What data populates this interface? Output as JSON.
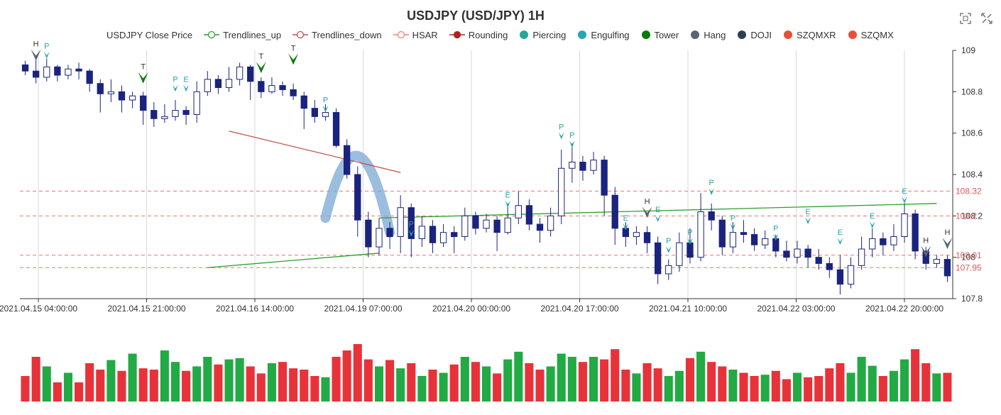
{
  "title": "USDJPY (USD/JPY) 1H",
  "legend": [
    {
      "name": "USDJPY Close Price",
      "shape": "none",
      "color": "#333333"
    },
    {
      "name": "Trendlines_up",
      "shape": "line-circle",
      "color": "#2ca02c"
    },
    {
      "name": "Trendlines_down",
      "shape": "line-circle",
      "color": "#c0504d"
    },
    {
      "name": "HSAR",
      "shape": "line-circle",
      "color": "#f08080"
    },
    {
      "name": "Rounding",
      "shape": "line-dot",
      "color": "#b22222"
    },
    {
      "name": "Piercing",
      "shape": "dot",
      "color": "#26a69a"
    },
    {
      "name": "Engulfing",
      "shape": "dot",
      "color": "#26a6b4"
    },
    {
      "name": "Tower",
      "shape": "dot",
      "color": "#0b7a0b"
    },
    {
      "name": "Hang",
      "shape": "dot",
      "color": "#5a6570"
    },
    {
      "name": "DOJI",
      "shape": "dot",
      "color": "#2f3e55"
    },
    {
      "name": "SZQMXR",
      "shape": "dot",
      "color": "#e8503a"
    },
    {
      "name": "SZQMX",
      "shape": "dot",
      "color": "#e8503a"
    }
  ],
  "toolbox": {
    "icons": [
      "zoom-icon",
      "restore-icon"
    ]
  },
  "chart_data": {
    "type": "candlestick",
    "y_axis": {
      "min": 107.8,
      "max": 109.0,
      "ticks": [
        "109",
        "108.8",
        "108.6",
        "108.4",
        "108.2",
        "108",
        "107.8"
      ]
    },
    "x_axis": {
      "labels": [
        "2021.04.15 04:00:00",
        "2021.04.15 21:00:00",
        "2021.04.16 14:00:00",
        "2021.04.19 07:00:00",
        "2021.04.20 00:00:00",
        "2021.04.20 17:00:00",
        "2021.04.21 10:00:00",
        "2021.04.22 03:00:00",
        "2021.04.22 20:00:00"
      ]
    },
    "hsar_levels": [
      {
        "value": 108.32,
        "label": "108.32"
      },
      {
        "value": 108.2,
        "label": "108.2"
      },
      {
        "value": 108.01,
        "label": "108.01"
      },
      {
        "value": 107.95,
        "label": "107.95"
      }
    ],
    "trendlines_down": [
      [
        [
          19,
          108.61
        ],
        [
          35,
          108.41
        ]
      ]
    ],
    "trendlines_up": [
      [
        [
          17,
          107.95
        ],
        [
          33,
          108.02
        ]
      ],
      [
        [
          33,
          108.19
        ],
        [
          85,
          108.26
        ]
      ]
    ],
    "rounding": {
      "start": [
        28,
        108.19
      ],
      "peak": [
        31,
        108.49
      ],
      "end": [
        34,
        108.12
      ]
    },
    "patterns": [
      {
        "i": 1,
        "label": "H",
        "kind": "Hang",
        "dir": "down",
        "price": 108.95
      },
      {
        "i": 2,
        "label": "P",
        "kind": "Piercing",
        "dir": "down",
        "price": 108.96
      },
      {
        "i": 11,
        "label": "T",
        "kind": "Tower",
        "dir": "down",
        "price": 108.84
      },
      {
        "i": 14,
        "label": "P",
        "kind": "Piercing",
        "dir": "down",
        "price": 108.8
      },
      {
        "i": 15,
        "label": "E",
        "kind": "Engulfing",
        "dir": "down",
        "price": 108.8
      },
      {
        "i": 22,
        "label": "T",
        "kind": "Tower",
        "dir": "down",
        "price": 108.89
      },
      {
        "i": 25,
        "label": "T",
        "kind": "Tower",
        "dir": "down",
        "price": 108.93
      },
      {
        "i": 28,
        "label": "P",
        "kind": "Piercing",
        "dir": "down",
        "price": 108.7
      },
      {
        "i": 36,
        "label": "P",
        "kind": "Piercing",
        "dir": "down",
        "price": 108.1
      },
      {
        "i": 45,
        "label": "E",
        "kind": "Engulfing",
        "dir": "down",
        "price": 108.24
      },
      {
        "i": 50,
        "label": "P",
        "kind": "Piercing",
        "dir": "down",
        "price": 108.57
      },
      {
        "i": 51,
        "label": "P",
        "kind": "Piercing",
        "dir": "down",
        "price": 108.53
      },
      {
        "i": 56,
        "label": "E",
        "kind": "Engulfing",
        "dir": "down",
        "price": 108.13
      },
      {
        "i": 58,
        "label": "H",
        "kind": "Hang",
        "dir": "down",
        "price": 108.19
      },
      {
        "i": 59,
        "label": "E",
        "kind": "Engulfing",
        "dir": "down",
        "price": 108.17
      },
      {
        "i": 60,
        "label": "P",
        "kind": "Piercing",
        "dir": "down",
        "price": 108.02
      },
      {
        "i": 62,
        "label": "P",
        "kind": "Piercing",
        "dir": "down",
        "price": 108.06
      },
      {
        "i": 64,
        "label": "P",
        "kind": "Piercing",
        "dir": "down",
        "price": 108.3
      },
      {
        "i": 66,
        "label": "P",
        "kind": "Piercing",
        "dir": "down",
        "price": 108.13
      },
      {
        "i": 70,
        "label": "P",
        "kind": "Piercing",
        "dir": "down",
        "price": 108.08
      },
      {
        "i": 73,
        "label": "E",
        "kind": "Engulfing",
        "dir": "down",
        "price": 108.16
      },
      {
        "i": 76,
        "label": "E",
        "kind": "Engulfing",
        "dir": "down",
        "price": 108.06
      },
      {
        "i": 79,
        "label": "E",
        "kind": "Engulfing",
        "dir": "down",
        "price": 108.14
      },
      {
        "i": 82,
        "label": "E",
        "kind": "Engulfing",
        "dir": "down",
        "price": 108.26
      },
      {
        "i": 84,
        "label": "H",
        "kind": "Hang",
        "dir": "down",
        "price": 108.0
      },
      {
        "i": 86,
        "label": "H",
        "kind": "Hang",
        "dir": "down",
        "price": 108.04
      }
    ],
    "candles": [
      [
        108.93,
        108.9,
        108.95,
        108.88
      ],
      [
        108.9,
        108.87,
        108.96,
        108.84
      ],
      [
        108.87,
        108.92,
        108.96,
        108.85
      ],
      [
        108.92,
        108.88,
        108.93,
        108.85
      ],
      [
        108.88,
        108.91,
        108.93,
        108.86
      ],
      [
        108.91,
        108.9,
        108.94,
        108.86
      ],
      [
        108.9,
        108.84,
        108.91,
        108.8
      ],
      [
        108.84,
        108.79,
        108.86,
        108.7
      ],
      [
        108.79,
        108.8,
        108.86,
        108.75
      ],
      [
        108.8,
        108.76,
        108.83,
        108.7
      ],
      [
        108.76,
        108.78,
        108.8,
        108.72
      ],
      [
        108.78,
        108.71,
        108.8,
        108.64
      ],
      [
        108.71,
        108.67,
        108.75,
        108.63
      ],
      [
        108.67,
        108.68,
        108.74,
        108.65
      ],
      [
        108.68,
        108.71,
        108.76,
        108.66
      ],
      [
        108.71,
        108.69,
        108.73,
        108.64
      ],
      [
        108.69,
        108.8,
        108.85,
        108.65
      ],
      [
        108.8,
        108.86,
        108.9,
        108.78
      ],
      [
        108.86,
        108.82,
        108.88,
        108.79
      ],
      [
        108.82,
        108.86,
        108.92,
        108.8
      ],
      [
        108.86,
        108.92,
        108.94,
        108.83
      ],
      [
        108.92,
        108.85,
        108.93,
        108.76
      ],
      [
        108.85,
        108.8,
        108.87,
        108.77
      ],
      [
        108.8,
        108.83,
        108.87,
        108.79
      ],
      [
        108.83,
        108.81,
        108.85,
        108.78
      ],
      [
        108.81,
        108.78,
        108.84,
        108.76
      ],
      [
        108.78,
        108.72,
        108.8,
        108.62
      ],
      [
        108.72,
        108.68,
        108.76,
        108.65
      ],
      [
        108.68,
        108.7,
        108.74,
        108.66
      ],
      [
        108.7,
        108.54,
        108.72,
        108.53
      ],
      [
        108.54,
        108.4,
        108.57,
        108.38
      ],
      [
        108.4,
        108.18,
        108.44,
        108.1
      ],
      [
        108.18,
        108.05,
        108.22,
        108.0
      ],
      [
        108.05,
        108.14,
        108.19,
        108.01
      ],
      [
        108.14,
        108.1,
        108.17,
        108.04
      ],
      [
        108.1,
        108.24,
        108.3,
        108.02
      ],
      [
        108.24,
        108.09,
        108.26,
        108.0
      ],
      [
        108.09,
        108.15,
        108.2,
        108.05
      ],
      [
        108.15,
        108.07,
        108.18,
        108.02
      ],
      [
        108.07,
        108.12,
        108.16,
        108.05
      ],
      [
        108.12,
        108.1,
        108.15,
        108.02
      ],
      [
        108.1,
        108.2,
        108.24,
        108.08
      ],
      [
        108.2,
        108.14,
        108.22,
        108.11
      ],
      [
        108.14,
        108.18,
        108.21,
        108.12
      ],
      [
        108.18,
        108.12,
        108.2,
        108.03
      ],
      [
        108.12,
        108.19,
        108.26,
        108.11
      ],
      [
        108.19,
        108.25,
        108.32,
        108.16
      ],
      [
        108.25,
        108.16,
        108.28,
        108.13
      ],
      [
        108.16,
        108.13,
        108.19,
        108.07
      ],
      [
        108.13,
        108.2,
        108.24,
        108.1
      ],
      [
        108.2,
        108.43,
        108.52,
        108.16
      ],
      [
        108.43,
        108.46,
        108.55,
        108.36
      ],
      [
        108.46,
        108.42,
        108.49,
        108.37
      ],
      [
        108.42,
        108.47,
        108.51,
        108.4
      ],
      [
        108.47,
        108.3,
        108.49,
        108.2
      ],
      [
        108.3,
        108.14,
        108.34,
        108.06
      ],
      [
        108.14,
        108.1,
        108.17,
        108.05
      ],
      [
        108.1,
        108.12,
        108.15,
        108.06
      ],
      [
        108.12,
        108.07,
        108.15,
        108.02
      ],
      [
        108.07,
        107.92,
        108.1,
        107.87
      ],
      [
        107.92,
        107.96,
        107.99,
        107.89
      ],
      [
        107.96,
        108.07,
        108.12,
        107.93
      ],
      [
        108.07,
        108.0,
        108.14,
        107.97
      ],
      [
        108.0,
        108.22,
        108.31,
        107.98
      ],
      [
        108.22,
        108.18,
        108.26,
        108.13
      ],
      [
        108.18,
        108.05,
        108.2,
        108.01
      ],
      [
        108.05,
        108.12,
        108.17,
        108.02
      ],
      [
        108.12,
        108.11,
        108.18,
        108.07
      ],
      [
        108.11,
        108.06,
        108.14,
        108.03
      ],
      [
        108.06,
        108.09,
        108.13,
        108.04
      ],
      [
        108.09,
        108.03,
        108.11,
        108.0
      ],
      [
        108.03,
        108.0,
        108.08,
        107.98
      ],
      [
        108.0,
        108.04,
        108.08,
        107.97
      ],
      [
        108.04,
        108.0,
        108.06,
        107.95
      ],
      [
        108.0,
        107.97,
        108.04,
        107.94
      ],
      [
        107.97,
        107.94,
        108.0,
        107.9
      ],
      [
        107.94,
        107.87,
        108.01,
        107.82
      ],
      [
        107.87,
        107.96,
        108.0,
        107.85
      ],
      [
        107.96,
        108.04,
        108.1,
        107.94
      ],
      [
        108.04,
        108.09,
        108.14,
        108.0
      ],
      [
        108.09,
        108.06,
        108.12,
        108.01
      ],
      [
        108.06,
        108.1,
        108.16,
        108.03
      ],
      [
        108.1,
        108.21,
        108.26,
        108.07
      ],
      [
        108.21,
        108.03,
        108.23,
        107.99
      ],
      [
        108.03,
        107.97,
        108.05,
        107.94
      ],
      [
        107.97,
        107.99,
        108.01,
        107.95
      ],
      [
        107.99,
        107.91,
        108.01,
        107.88
      ]
    ],
    "volume": [
      40,
      70,
      55,
      30,
      45,
      30,
      60,
      50,
      65,
      48,
      75,
      52,
      50,
      80,
      62,
      48,
      55,
      70,
      58,
      66,
      68,
      55,
      44,
      60,
      62,
      52,
      50,
      40,
      38,
      70,
      80,
      90,
      66,
      55,
      65,
      52,
      60,
      40,
      50,
      45,
      58,
      70,
      62,
      55,
      44,
      66,
      78,
      60,
      50,
      55,
      75,
      70,
      62,
      70,
      66,
      82,
      50,
      44,
      60,
      52,
      40,
      48,
      68,
      78,
      62,
      55,
      50,
      45,
      40,
      42,
      48,
      35,
      45,
      38,
      40,
      52,
      60,
      45,
      70,
      56,
      40,
      48,
      66,
      82,
      60,
      44,
      45
    ]
  }
}
